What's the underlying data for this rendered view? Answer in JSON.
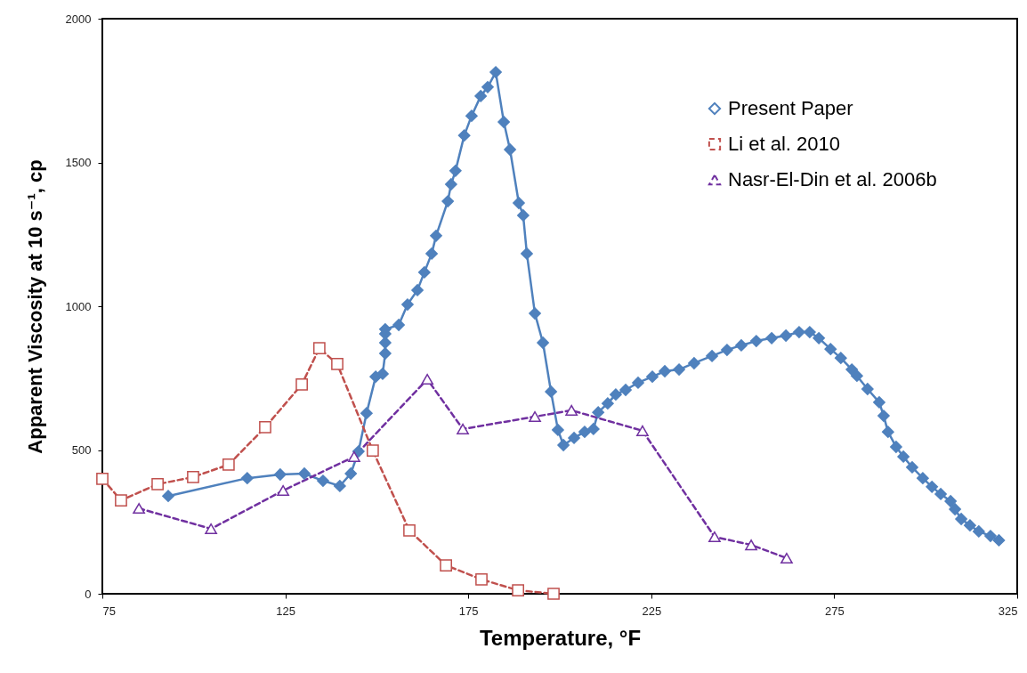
{
  "chart_data": {
    "type": "line",
    "xlabel": "Temperature, °F",
    "ylabel": "Apparent Viscosity at 10 s⁻¹, cp",
    "xlim": [
      75,
      325
    ],
    "xticks": [
      75,
      125,
      175,
      225,
      275,
      325
    ],
    "ylim": [
      0,
      2000
    ],
    "yticks": [
      0,
      500,
      1000,
      1500,
      2000
    ],
    "grid": false,
    "legend": "top right",
    "series": [
      {
        "name": "Present Paper",
        "color": "#4f81bd",
        "marker": "diamond",
        "line_style": "solid",
        "x": [
          93,
          114.6,
          123.6,
          130.2,
          135.3,
          139.9,
          142.9,
          145,
          147.2,
          149.7,
          151.6,
          152.3,
          152.3,
          152.3,
          152.3,
          156,
          158.4,
          161.1,
          163,
          165,
          166.2,
          169.4,
          170.3,
          171.5,
          173.9,
          175.9,
          178.4,
          180.3,
          182.5,
          184.7,
          186.4,
          188.8,
          190,
          191,
          193.2,
          195.4,
          197.6,
          199.5,
          201,
          203.9,
          206.8,
          209.2,
          210.5,
          213.1,
          215.3,
          218,
          221.4,
          225.3,
          228.7,
          232.6,
          236.7,
          241.6,
          245.7,
          249.6,
          253.7,
          257.9,
          261.8,
          265.4,
          268.3,
          270.8,
          274,
          276.8,
          279.8,
          281.2,
          284.1,
          287.3,
          288.5,
          289.7,
          291.9,
          293.9,
          296.3,
          299.2,
          301.7,
          304.1,
          306.8,
          308,
          309.7,
          312.1,
          314.5,
          317.7,
          320
        ],
        "values": [
          340,
          402,
          415,
          418,
          393,
          375,
          418,
          495,
          628,
          755,
          765,
          836,
          873,
          904,
          920,
          935,
          1006,
          1056,
          1118,
          1183,
          1245,
          1365,
          1424,
          1471,
          1594,
          1662,
          1731,
          1762,
          1814,
          1641,
          1545,
          1359,
          1316,
          1183,
          975,
          873,
          703,
          570,
          517,
          542,
          563,
          573,
          631,
          662,
          693,
          709,
          734,
          755,
          774,
          780,
          802,
          827,
          848,
          864,
          879,
          889,
          898,
          910,
          910,
          889,
          851,
          820,
          780,
          758,
          712,
          666,
          619,
          563,
          511,
          477,
          440,
          402,
          372,
          347,
          322,
          294,
          260,
          238,
          217,
          201,
          186
        ]
      },
      {
        "name": "Li et al. 2010",
        "color": "#c0504d",
        "marker": "square",
        "line_style": "dashed",
        "x": [
          75,
          80.1,
          90.1,
          99.8,
          109.5,
          119.5,
          129.5,
          134.3,
          139.2,
          148.9,
          158.9,
          168.9,
          178.6,
          188.6,
          198.3
        ],
        "values": [
          400,
          325,
          381,
          406,
          449,
          579,
          728,
          854,
          799,
          498,
          220,
          99,
          50,
          12,
          0
        ]
      },
      {
        "name": "Nasr-El-Din et al. 2006b",
        "color": "#7030a0",
        "marker": "triangle",
        "line_style": "dashed",
        "x": [
          85,
          104.7,
          124.4,
          143.8,
          163.8,
          173.5,
          193.2,
          203.2,
          222.6,
          242.3,
          252.3,
          262
        ],
        "values": [
          297,
          226,
          359,
          477,
          746,
          573,
          616,
          638,
          567,
          198,
          170,
          124
        ]
      }
    ]
  }
}
